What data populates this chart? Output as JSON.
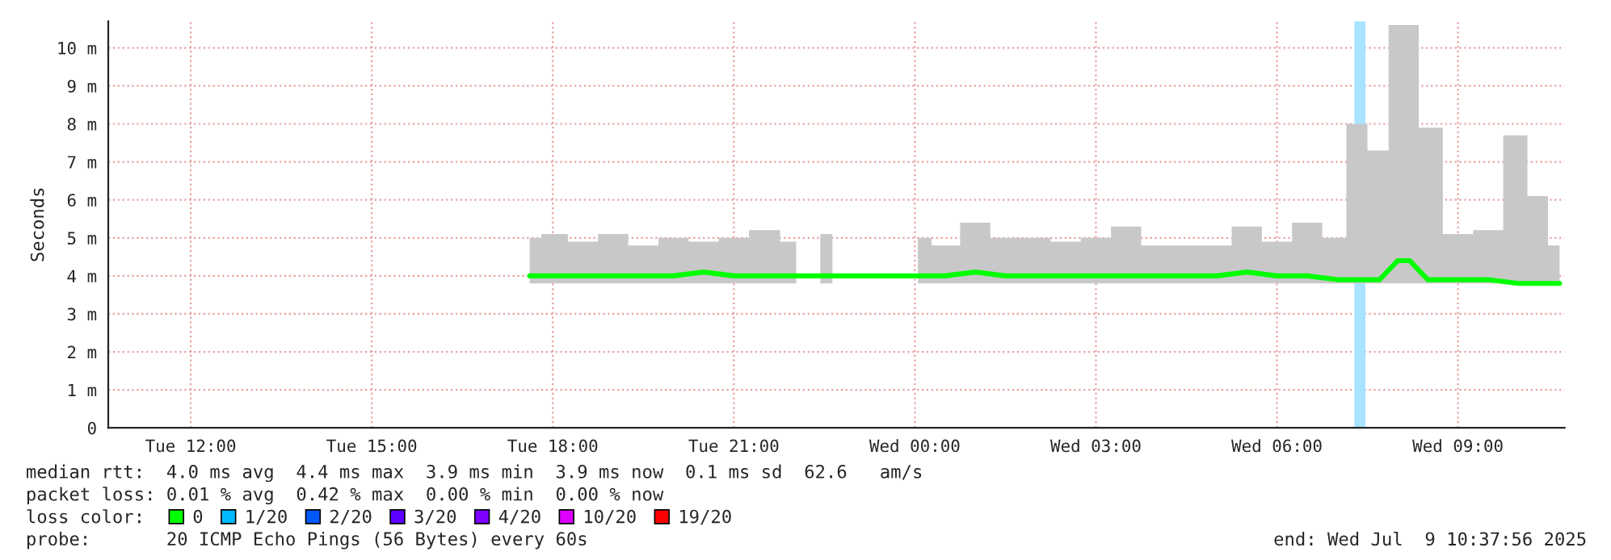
{
  "chart_data": {
    "type": "line",
    "ylabel": "Seconds",
    "legend_title": "loss color:",
    "legend": "bottom left",
    "grid": true,
    "xlim": [
      "2025-07-08T10:38",
      "2025-07-09T10:46"
    ],
    "xticks": [
      {
        "value": "2025-07-08T12:00",
        "label": "Tue 12:00"
      },
      {
        "value": "2025-07-08T15:00",
        "label": "Tue 15:00"
      },
      {
        "value": "2025-07-08T18:00",
        "label": "Tue 18:00"
      },
      {
        "value": "2025-07-08T21:00",
        "label": "Tue 21:00"
      },
      {
        "value": "2025-07-09T00:00",
        "label": "Wed 00:00"
      },
      {
        "value": "2025-07-09T03:00",
        "label": "Wed 03:00"
      },
      {
        "value": "2025-07-09T06:00",
        "label": "Wed 06:00"
      },
      {
        "value": "2025-07-09T09:00",
        "label": "Wed 09:00"
      }
    ],
    "ylim": [
      0,
      10.7
    ],
    "yticks": [
      0,
      {
        "value": 1,
        "label": "1 m"
      },
      {
        "value": 2,
        "label": "2 m"
      },
      {
        "value": 3,
        "label": "3 m"
      },
      {
        "value": 4,
        "label": "4 m"
      },
      {
        "value": 5,
        "label": "5 m"
      },
      {
        "value": 6,
        "label": "6 m"
      },
      {
        "value": 7,
        "label": "7 m"
      },
      {
        "value": 8,
        "label": "8 m"
      },
      {
        "value": 9,
        "label": "9 m"
      },
      {
        "value": 10,
        "label": "10 m"
      }
    ],
    "bands": [
      {
        "axis": "x",
        "from": "2025-07-09T07:17",
        "to": "2025-07-09T07:28",
        "color": "#a8e4ff"
      }
    ],
    "series": [
      {
        "name": "0",
        "color": "#00ff00",
        "x": [
          "2025-07-08T17:37",
          "2025-07-08T18:00",
          "2025-07-08T18:30",
          "2025-07-08T19:00",
          "2025-07-08T19:30",
          "2025-07-08T20:00",
          "2025-07-08T20:30",
          "2025-07-08T21:00",
          "2025-07-08T21:30",
          "2025-07-08T22:02",
          "2025-07-08T22:12",
          "2025-07-08T22:26",
          "2025-07-08T22:38",
          "2025-07-08T23:00",
          "2025-07-09T00:03",
          "2025-07-09T00:30",
          "2025-07-09T01:00",
          "2025-07-09T01:30",
          "2025-07-09T02:00",
          "2025-07-09T02:30",
          "2025-07-09T03:00",
          "2025-07-09T03:30",
          "2025-07-09T04:00",
          "2025-07-09T04:30",
          "2025-07-09T05:00",
          "2025-07-09T05:30",
          "2025-07-09T06:00",
          "2025-07-09T06:30",
          "2025-07-09T07:00",
          "2025-07-09T07:18",
          "2025-07-09T07:42",
          "2025-07-09T08:00",
          "2025-07-09T08:12",
          "2025-07-09T08:30",
          "2025-07-09T09:00",
          "2025-07-09T09:30",
          "2025-07-09T10:00",
          "2025-07-09T10:18",
          "2025-07-09T10:41"
        ],
        "values": [
          4.0,
          4.0,
          4.0,
          4.0,
          4.0,
          4.0,
          4.1,
          4.0,
          4.0,
          4.0,
          null,
          4.0,
          4.0,
          null,
          4.0,
          4.0,
          4.1,
          4.0,
          4.0,
          4.0,
          4.0,
          4.0,
          4.0,
          4.0,
          4.0,
          4.1,
          4.0,
          4.0,
          3.9,
          3.9,
          3.9,
          4.4,
          4.4,
          3.9,
          3.9,
          3.9,
          3.8,
          3.8,
          3.8
        ],
        "lower": [
          3.8,
          3.8,
          3.8,
          3.8,
          3.8,
          3.8,
          3.8,
          3.8,
          3.8,
          3.8,
          null,
          3.8,
          3.8,
          null,
          3.8,
          3.8,
          3.8,
          3.8,
          3.8,
          3.8,
          3.8,
          3.8,
          3.8,
          3.8,
          3.8,
          3.8,
          3.8,
          3.8,
          3.8,
          3.8,
          3.8,
          3.8,
          3.8,
          3.8,
          3.8,
          3.8,
          3.8,
          3.8,
          3.8
        ],
        "upper": [
          5.0,
          5.1,
          4.9,
          5.1,
          4.8,
          5.0,
          4.9,
          5.0,
          5.2,
          4.9,
          null,
          5.1,
          5.1,
          null,
          5.0,
          4.8,
          5.4,
          5.0,
          5.0,
          4.9,
          5.0,
          5.3,
          4.8,
          4.8,
          4.8,
          5.3,
          4.9,
          5.4,
          5.0,
          8.0,
          7.3,
          10.6,
          10.6,
          7.9,
          5.1,
          5.2,
          7.7,
          6.1,
          4.8
        ]
      },
      {
        "name": "1/20",
        "color": "#00b8ff",
        "values": [
          null
        ]
      },
      {
        "name": "2/20",
        "color": "#0059ff",
        "values": [
          null
        ]
      },
      {
        "name": "3/20",
        "color": "#5e00ff",
        "values": [
          null
        ]
      },
      {
        "name": "4/20",
        "color": "#7e00ff",
        "values": [
          null
        ]
      },
      {
        "name": "10/20",
        "color": "#dd00ff",
        "values": [
          null
        ]
      },
      {
        "name": "19/20",
        "color": "#ff0000",
        "values": [
          null
        ]
      }
    ],
    "annotations": [
      "median rtt:  4.0 ms avg  4.4 ms max  3.9 ms min  3.9 ms now  0.1 ms sd  62.6   am/s",
      "packet loss: 0.01 % avg  0.42 % max  0.00 % min  0.00 % now",
      "probe:       20 ICMP Echo Pings (56 Bytes) every 60s",
      "end: Wed Jul  9 10:37:56 2025"
    ]
  }
}
